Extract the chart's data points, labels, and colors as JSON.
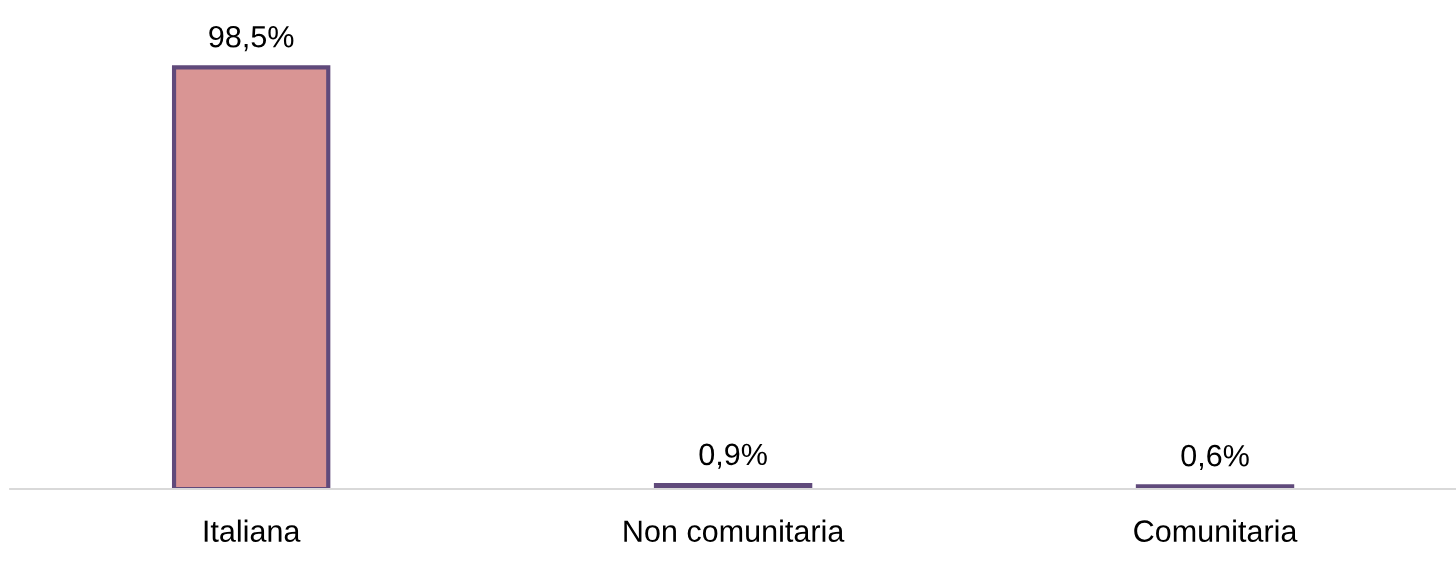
{
  "chart_data": {
    "type": "bar",
    "categories": [
      "Italiana",
      "Non comunitaria",
      "Comunitaria"
    ],
    "values": [
      98.5,
      0.9,
      0.6
    ],
    "value_labels": [
      "98,5%",
      "0,9%",
      "0,6%"
    ],
    "color": "#d99594",
    "relative": false,
    "grid": false,
    "legend": false
  }
}
